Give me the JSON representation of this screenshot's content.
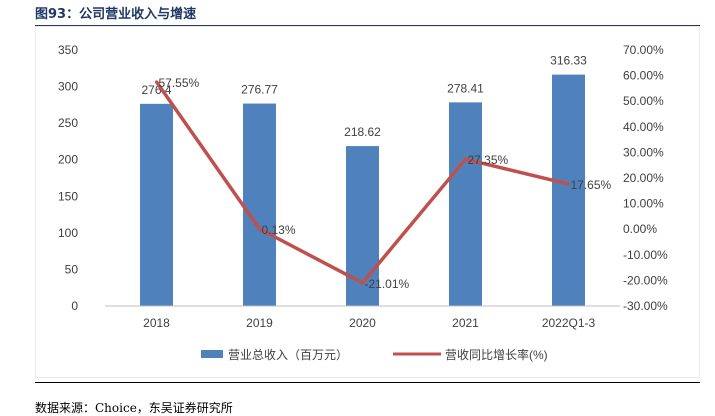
{
  "header": {
    "title": "图93：公司营业收入与增速"
  },
  "footer": {
    "source": "数据来源：Choice，东吴证券研究所"
  },
  "colors": {
    "bar": "#4f81bd",
    "line": "#c0504d",
    "axis": "#bfbfbf",
    "text": "#404040",
    "title": "#1f3864"
  },
  "chart_data": {
    "type": "bar",
    "title": "",
    "categories": [
      "2018",
      "2019",
      "2020",
      "2021",
      "2022Q1-3"
    ],
    "series": [
      {
        "name": "营业总收入（百万元）",
        "type": "bar",
        "axis": "left",
        "values": [
          276.4,
          276.77,
          218.62,
          278.41,
          316.33
        ],
        "labels": [
          "276.4",
          "276.77",
          "218.62",
          "278.41",
          "316.33"
        ]
      },
      {
        "name": "营收同比增长率(%)",
        "type": "line",
        "axis": "right",
        "values": [
          57.55,
          0.13,
          -21.01,
          27.35,
          17.65
        ],
        "labels": [
          "57.55%",
          "0.13%",
          "-21.01%",
          "27.35%",
          "17.65%"
        ]
      }
    ],
    "y_left": {
      "min": 0,
      "max": 350,
      "step": 50,
      "ticks": [
        "0",
        "50",
        "100",
        "150",
        "200",
        "250",
        "300",
        "350"
      ]
    },
    "y_right": {
      "min": -30,
      "max": 70,
      "step": 10,
      "ticks": [
        "-30.00%",
        "-20.00%",
        "-10.00%",
        "0.00%",
        "10.00%",
        "20.00%",
        "30.00%",
        "40.00%",
        "50.00%",
        "60.00%",
        "70.00%"
      ]
    },
    "legend": {
      "position": "bottom"
    }
  }
}
